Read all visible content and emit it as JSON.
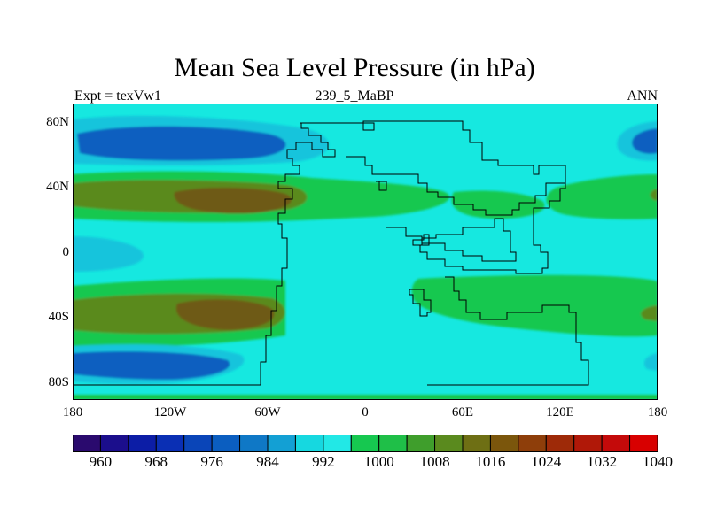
{
  "title": "Mean Sea Level Pressure (in hPa)",
  "left_label": "Expt = texVw1",
  "center_label": "239_5_MaBP",
  "right_label": "ANN",
  "lat_ticks": [
    "80N",
    "40N",
    "0",
    "40S",
    "80S"
  ],
  "lon_ticks": [
    "180",
    "120W",
    "60W",
    "0",
    "60E",
    "120E",
    "180"
  ],
  "colorbar": {
    "colors": [
      "#2a0a6e",
      "#1b0e8c",
      "#0c1da6",
      "#0a2fb4",
      "#0a45b8",
      "#0b5ec0",
      "#0f78c6",
      "#13a0d4",
      "#16d8e0",
      "#22e8e6",
      "#16c850",
      "#1fbf48",
      "#3f9e2c",
      "#5a8a1e",
      "#6e6f14",
      "#7b560c",
      "#8e3e0a",
      "#9e2a08",
      "#b01808",
      "#c40a0a",
      "#d80000"
    ],
    "labels": [
      "960",
      "968",
      "976",
      "984",
      "992",
      "1000",
      "1008",
      "1016",
      "1024",
      "1032",
      "1040"
    ]
  },
  "colors": {
    "background": "#16e8e0",
    "light_blue": "#13c4dc",
    "blue": "#0b5ec0",
    "green": "#16c850",
    "olive": "#5a8a1e",
    "brown": "#6e5a14"
  }
}
